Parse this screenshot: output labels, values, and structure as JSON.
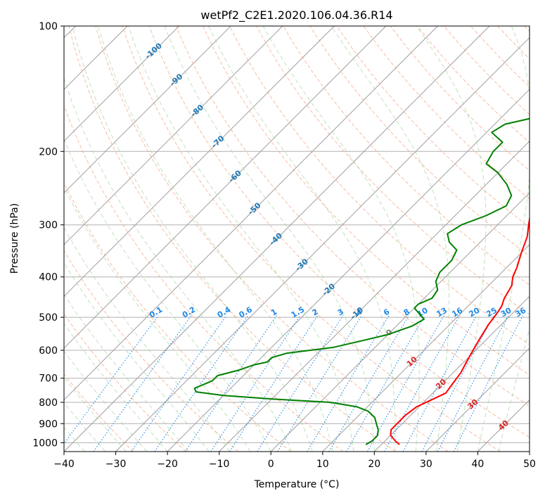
{
  "chart_data": {
    "type": "line",
    "title": "wetPf2_C2E1.2020.106.04.36.R14",
    "xlabel": "Temperature (°C)",
    "ylabel": "Pressure (hPa)",
    "xlim": [
      -40,
      50
    ],
    "ylim": [
      1050,
      100
    ],
    "y_scale": "log",
    "grid": true,
    "x_ticks": [
      "−40",
      "−30",
      "−20",
      "−10",
      "0",
      "10",
      "20",
      "30",
      "40",
      "50"
    ],
    "y_ticks": [
      "100",
      "200",
      "300",
      "400",
      "500",
      "600",
      "700",
      "800",
      "900",
      "1000"
    ],
    "series": [
      {
        "color": "#ff0000",
        "points": [
          [
            1010,
            23.5
          ],
          [
            990,
            22
          ],
          [
            960,
            20
          ],
          [
            930,
            19
          ],
          [
            900,
            19
          ],
          [
            860,
            19
          ],
          [
            820,
            19.5
          ],
          [
            790,
            21
          ],
          [
            760,
            22.5
          ],
          [
            720,
            22
          ],
          [
            680,
            21.5
          ],
          [
            640,
            20.5
          ],
          [
            600,
            19.5
          ],
          [
            560,
            18.5
          ],
          [
            520,
            17.5
          ],
          [
            490,
            17
          ],
          [
            470,
            16.5
          ],
          [
            450,
            15.5
          ],
          [
            420,
            14.5
          ],
          [
            400,
            13
          ],
          [
            380,
            12
          ],
          [
            350,
            10
          ],
          [
            320,
            8
          ],
          [
            300,
            6
          ],
          [
            280,
            4
          ],
          [
            265,
            3
          ],
          [
            250,
            2.5
          ],
          [
            235,
            2.5
          ],
          [
            220,
            3
          ],
          [
            205,
            5
          ],
          [
            190,
            7
          ],
          [
            175,
            7
          ],
          [
            160,
            6
          ],
          [
            145,
            4
          ],
          [
            135,
            1.5
          ],
          [
            128,
            -1
          ],
          [
            120,
            -2
          ],
          [
            112,
            0
          ],
          [
            106,
            3
          ],
          [
            100,
            6
          ]
        ]
      },
      {
        "color": "#008000",
        "points": [
          [
            1010,
            17
          ],
          [
            990,
            17.5
          ],
          [
            960,
            17.5
          ],
          [
            930,
            16.5
          ],
          [
            900,
            15
          ],
          [
            870,
            13.5
          ],
          [
            840,
            11
          ],
          [
            820,
            8
          ],
          [
            800,
            2
          ],
          [
            785,
            -10
          ],
          [
            770,
            -20
          ],
          [
            755,
            -26
          ],
          [
            740,
            -27
          ],
          [
            725,
            -26
          ],
          [
            710,
            -25
          ],
          [
            690,
            -25
          ],
          [
            670,
            -22
          ],
          [
            650,
            -20
          ],
          [
            640,
            -18
          ],
          [
            625,
            -18
          ],
          [
            610,
            -16
          ],
          [
            600,
            -12
          ],
          [
            590,
            -8
          ],
          [
            570,
            -4
          ],
          [
            550,
            0
          ],
          [
            525,
            3
          ],
          [
            505,
            4
          ],
          [
            490,
            2
          ],
          [
            475,
            0
          ],
          [
            465,
            0
          ],
          [
            450,
            1.5
          ],
          [
            430,
            1
          ],
          [
            410,
            -1
          ],
          [
            390,
            -2
          ],
          [
            365,
            -2
          ],
          [
            345,
            -3
          ],
          [
            330,
            -6
          ],
          [
            315,
            -8
          ],
          [
            300,
            -7
          ],
          [
            285,
            -4
          ],
          [
            270,
            -2
          ],
          [
            255,
            -3
          ],
          [
            240,
            -6
          ],
          [
            225,
            -10
          ],
          [
            214,
            -14
          ],
          [
            200,
            -15
          ],
          [
            190,
            -15
          ],
          [
            185,
            -17
          ],
          [
            180,
            -19
          ],
          [
            172,
            -18
          ],
          [
            165,
            -13
          ],
          [
            158,
            -9
          ],
          [
            150,
            -5
          ],
          [
            142,
            -3
          ],
          [
            132,
            -3
          ],
          [
            122,
            -3
          ],
          [
            114,
            -4
          ],
          [
            108,
            -4
          ],
          [
            104,
            0
          ],
          [
            100,
            4
          ]
        ]
      }
    ],
    "dry_adiabat_labels": [
      "-100",
      "-90",
      "-80",
      "-70",
      "-60",
      "-50",
      "-40",
      "-30",
      "-20",
      "-10"
    ],
    "mixing_ratio_labels": [
      "0.1",
      "0.2",
      "0.4",
      "0.6",
      "1",
      "1.5",
      "2",
      "3",
      "4",
      "6",
      "8",
      "10",
      "13",
      "16",
      "20",
      "25",
      "30",
      "36"
    ],
    "moist_adiabat_labels": [
      "0",
      "10",
      "20",
      "30",
      "40"
    ],
    "colors": {
      "temperature": "#ff0000",
      "dewpoint": "#008000",
      "isotherm": "#9e9e9e",
      "isobar": "#b0b0b0",
      "dry_adiabat": "#f4a582",
      "moist_adiabat": "#a6d4a0",
      "mixing_ratio": "#1e88e5",
      "dry_label": "#1f77b4",
      "moist_label": "#d62728",
      "zero_label": "#7f7f7f"
    }
  }
}
